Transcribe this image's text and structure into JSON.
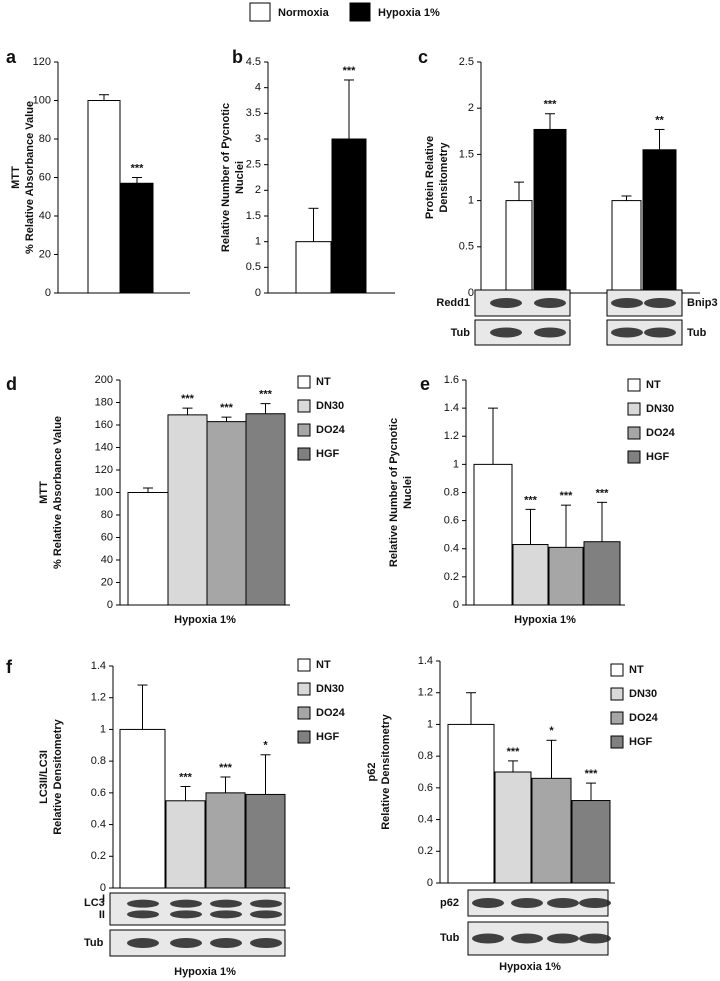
{
  "legend": [
    {
      "name": "Normoxia",
      "color": "#ffffff"
    },
    {
      "name": "Hypoxia 1%",
      "color": "#000000"
    }
  ],
  "chart_data": [
    {
      "type": "bar",
      "panel": "a",
      "ylabel": [
        "MTT",
        "% Relative Absorbance Value"
      ],
      "categories": [
        null
      ],
      "series": [
        {
          "color": "#ffffff",
          "values": [
            100
          ],
          "errors": [
            3
          ],
          "annotations": [
            null
          ]
        },
        {
          "color": "#000000",
          "values": [
            57
          ],
          "errors": [
            3
          ],
          "annotations": [
            "***"
          ]
        }
      ],
      "ylim": [
        0,
        120
      ],
      "yticks": [
        0,
        20,
        40,
        60,
        80,
        100,
        120
      ]
    },
    {
      "type": "bar",
      "panel": "b",
      "ylabel": [
        "Relative Number of Pycnotic",
        "Nuclei"
      ],
      "categories": [
        null
      ],
      "series": [
        {
          "color": "#ffffff",
          "values": [
            1
          ],
          "errors": [
            0.65
          ],
          "annotations": [
            null
          ]
        },
        {
          "color": "#000000",
          "values": [
            3
          ],
          "errors": [
            1.15
          ],
          "annotations": [
            "***"
          ]
        }
      ],
      "ylim": [
        0,
        4.5
      ],
      "yticks": [
        0,
        0.5,
        1,
        1.5,
        2,
        2.5,
        3,
        3.5,
        4,
        4.5
      ]
    },
    {
      "type": "bar",
      "panel": "c",
      "ylabel": [
        "Protein Relative",
        "Densitometry"
      ],
      "categories": [
        null,
        null
      ],
      "series": [
        {
          "color": "#ffffff",
          "values": [
            1,
            1
          ],
          "errors": [
            0.2,
            0.05
          ],
          "annotations": [
            null,
            null
          ]
        },
        {
          "color": "#000000",
          "values": [
            1.77,
            1.55
          ],
          "errors": [
            0.17,
            0.22
          ],
          "annotations": [
            "***",
            "**"
          ]
        }
      ],
      "ylim": [
        0,
        2.5
      ],
      "yticks": [
        0,
        0.5,
        1,
        1.5,
        2,
        2.5
      ],
      "blots": [
        "Redd1",
        "Tub",
        "Bnip3",
        "Tub"
      ]
    },
    {
      "type": "bar",
      "panel": "d",
      "ylabel": [
        "MTT",
        "% Relative Absorbance Value"
      ],
      "xlabel": "Hypoxia 1%",
      "categories": [
        "NT",
        "DN30",
        "DO24",
        "HGF"
      ],
      "colors": [
        "#ffffff",
        "#d9d9d9",
        "#a6a6a6",
        "#808080"
      ],
      "values": [
        100,
        169,
        163,
        170
      ],
      "errors": [
        4,
        6,
        4,
        9
      ],
      "annotations": [
        null,
        "***",
        "***",
        "***"
      ],
      "ylim": [
        0,
        200
      ],
      "yticks": [
        0,
        20,
        40,
        60,
        80,
        100,
        120,
        140,
        160,
        180,
        200
      ]
    },
    {
      "type": "bar",
      "panel": "e",
      "ylabel": [
        "Relative Number of Pycnotic",
        "Nuclei"
      ],
      "xlabel": "Hypoxia 1%",
      "categories": [
        "NT",
        "DN30",
        "DO24",
        "HGF"
      ],
      "colors": [
        "#ffffff",
        "#d9d9d9",
        "#a6a6a6",
        "#808080"
      ],
      "values": [
        1,
        0.43,
        0.41,
        0.45
      ],
      "errors": [
        0.4,
        0.25,
        0.3,
        0.28
      ],
      "annotations": [
        null,
        "***",
        "***",
        "***"
      ],
      "ylim": [
        0,
        1.6
      ],
      "yticks": [
        0,
        0.2,
        0.4,
        0.6,
        0.8,
        1,
        1.2,
        1.4,
        1.6
      ]
    },
    {
      "type": "bar",
      "panel": "f",
      "ylabel": [
        "LC3II/LC3I",
        "Relative Densitometry"
      ],
      "xlabel": "Hypoxia 1%",
      "categories": [
        "NT",
        "DN30",
        "DO24",
        "HGF"
      ],
      "colors": [
        "#ffffff",
        "#d9d9d9",
        "#a6a6a6",
        "#808080"
      ],
      "values": [
        1,
        0.55,
        0.6,
        0.59
      ],
      "errors": [
        0.28,
        0.09,
        0.1,
        0.25
      ],
      "annotations": [
        null,
        "***",
        "***",
        "*"
      ],
      "ylim": [
        0,
        1.4
      ],
      "yticks": [
        0,
        0.2,
        0.4,
        0.6,
        0.8,
        1,
        1.2,
        1.4
      ],
      "blots": [
        "LC3",
        "I",
        "II",
        "Tub"
      ]
    },
    {
      "type": "bar",
      "ylabel": [
        "p62",
        "Relative Densitometry"
      ],
      "xlabel": "Hypoxia 1%",
      "categories": [
        "NT",
        "DN30",
        "DO24",
        "HGF"
      ],
      "colors": [
        "#ffffff",
        "#d9d9d9",
        "#a6a6a6",
        "#808080"
      ],
      "values": [
        1,
        0.7,
        0.66,
        0.52
      ],
      "errors": [
        0.2,
        0.07,
        0.24,
        0.11
      ],
      "annotations": [
        null,
        "***",
        "*",
        "***"
      ],
      "ylim": [
        0,
        1.4
      ],
      "yticks": [
        0,
        0.2,
        0.4,
        0.6,
        0.8,
        1,
        1.2,
        1.4
      ],
      "blots": [
        "p62",
        "Tub"
      ]
    }
  ]
}
